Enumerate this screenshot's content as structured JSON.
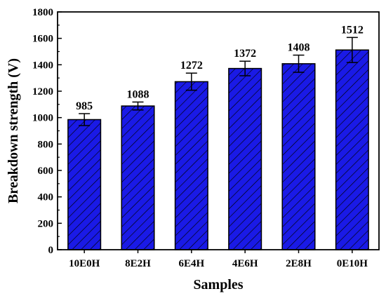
{
  "chart_data": {
    "type": "bar",
    "title": "",
    "xlabel": "Samples",
    "ylabel": "Breakdown strength (V)",
    "categories": [
      "10E0H",
      "8E2H",
      "6E4H",
      "4E6H",
      "2E8H",
      "0E10H"
    ],
    "values": [
      985,
      1088,
      1272,
      1372,
      1408,
      1512
    ],
    "errors": [
      45,
      30,
      65,
      55,
      65,
      95
    ],
    "data_labels": [
      "985",
      "1088",
      "1272",
      "1372",
      "1408",
      "1512"
    ],
    "ylim": [
      0,
      1800
    ],
    "yticks": [
      "0",
      "200",
      "400",
      "600",
      "800",
      "1000",
      "1200",
      "1400",
      "1600",
      "1800"
    ],
    "bar_color": "#1a1ae6",
    "hatch": "diagonal",
    "grid": false
  }
}
